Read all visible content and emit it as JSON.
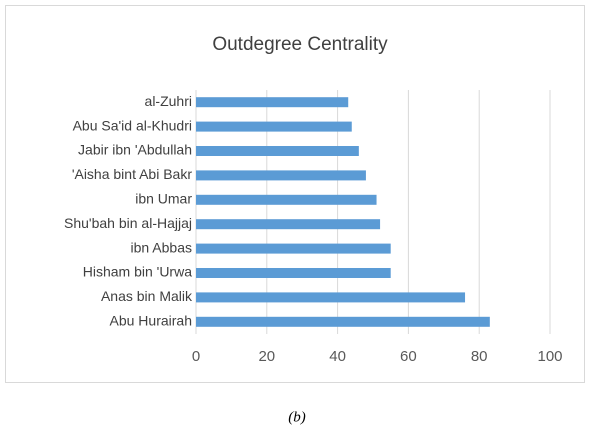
{
  "chart_data": {
    "type": "bar",
    "orientation": "horizontal",
    "title": "Outdegree Centrality",
    "categories": [
      "al-Zuhri",
      "Abu Sa'id al-Khudri",
      "Jabir ibn 'Abdullah",
      "'Aisha bint Abi Bakr",
      "ibn Umar",
      "Shu'bah bin al-Hajjaj",
      "ibn Abbas",
      "Hisham bin 'Urwa",
      "Anas bin Malik",
      "Abu Hurairah"
    ],
    "values": [
      43,
      44,
      46,
      48,
      51,
      52,
      55,
      55,
      76,
      83
    ],
    "color": "#5b9bd5",
    "xlim": [
      0,
      100
    ],
    "xticks": [
      0,
      20,
      40,
      60,
      80,
      100
    ],
    "grid": true,
    "caption": "(b)"
  }
}
